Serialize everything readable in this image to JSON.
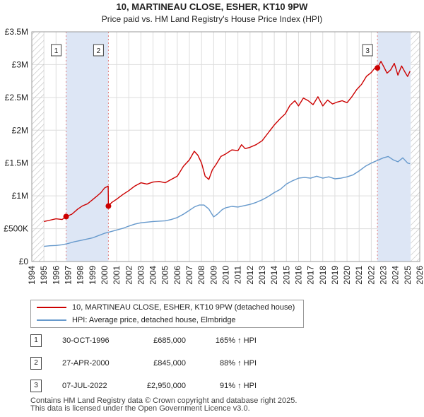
{
  "chart_data": {
    "type": "line",
    "title": "10, MARTINEAU CLOSE, ESHER, KT10 9PW",
    "subtitle": "Price paid vs. HM Land Registry's House Price Index (HPI)",
    "xlabel": "",
    "ylabel": "",
    "xlim": [
      1994,
      2026
    ],
    "ylim": [
      0,
      3500000
    ],
    "x_ticks": [
      "1994",
      "1995",
      "1996",
      "1997",
      "1998",
      "1999",
      "2000",
      "2001",
      "2002",
      "2003",
      "2004",
      "2005",
      "2006",
      "2007",
      "2008",
      "2009",
      "2010",
      "2011",
      "2012",
      "2013",
      "2014",
      "2015",
      "2016",
      "2017",
      "2018",
      "2019",
      "2020",
      "2021",
      "2022",
      "2023",
      "2024",
      "2025",
      "2026"
    ],
    "y_ticks": [
      {
        "value": 0,
        "label": "£0"
      },
      {
        "value": 500000,
        "label": "£500K"
      },
      {
        "value": 1000000,
        "label": "£1M"
      },
      {
        "value": 1500000,
        "label": "£1.5M"
      },
      {
        "value": 2000000,
        "label": "£2M"
      },
      {
        "value": 2500000,
        "label": "£2.5M"
      },
      {
        "value": 3000000,
        "label": "£3M"
      },
      {
        "value": 3500000,
        "label": "£3.5M"
      }
    ],
    "shaded_periods": [
      {
        "start": 1996.83,
        "end": 2000.32
      },
      {
        "start": 2022.51,
        "end": 2025.25
      }
    ],
    "hatched_periods": [
      {
        "start": 1994,
        "end": 1995.0
      },
      {
        "start": 2025.25,
        "end": 2026
      }
    ],
    "series": [
      {
        "name": "10, MARTINEAU CLOSE, ESHER, KT10 9PW (detached house)",
        "color": "#cc0000",
        "x": [
          1995.0,
          1995.5,
          1996.0,
          1996.5,
          1996.83,
          1997.3,
          1997.8,
          1998.2,
          1998.6,
          1999.0,
          1999.4,
          1999.7,
          2000.0,
          2000.3,
          2000.32,
          2000.6,
          2001.0,
          2001.5,
          2002.0,
          2002.5,
          2003.0,
          2003.5,
          2004.0,
          2004.5,
          2005.0,
          2005.5,
          2006.0,
          2006.5,
          2007.0,
          2007.4,
          2007.7,
          2008.0,
          2008.3,
          2008.6,
          2008.9,
          2009.2,
          2009.6,
          2010.0,
          2010.5,
          2011.0,
          2011.3,
          2011.6,
          2012.0,
          2012.5,
          2013.0,
          2013.5,
          2014.0,
          2014.5,
          2014.9,
          2015.3,
          2015.7,
          2016.0,
          2016.4,
          2016.8,
          2017.2,
          2017.6,
          2018.0,
          2018.4,
          2018.8,
          2019.2,
          2019.6,
          2020.0,
          2020.4,
          2020.8,
          2021.2,
          2021.6,
          2022.0,
          2022.3,
          2022.51,
          2022.8,
          2023.0,
          2023.3,
          2023.6,
          2023.9,
          2024.2,
          2024.5,
          2024.8,
          2025.0,
          2025.2
        ],
        "values": [
          610000,
          630000,
          650000,
          640000,
          685000,
          720000,
          800000,
          850000,
          880000,
          940000,
          1000000,
          1050000,
          1120000,
          1150000,
          845000,
          900000,
          950000,
          1020000,
          1080000,
          1150000,
          1200000,
          1180000,
          1210000,
          1220000,
          1200000,
          1250000,
          1300000,
          1450000,
          1550000,
          1680000,
          1620000,
          1500000,
          1300000,
          1250000,
          1400000,
          1480000,
          1600000,
          1640000,
          1700000,
          1690000,
          1780000,
          1720000,
          1740000,
          1780000,
          1840000,
          1960000,
          2080000,
          2180000,
          2250000,
          2380000,
          2450000,
          2370000,
          2490000,
          2450000,
          2390000,
          2510000,
          2370000,
          2460000,
          2400000,
          2430000,
          2450000,
          2420000,
          2510000,
          2620000,
          2700000,
          2820000,
          2880000,
          2950000,
          2950000,
          3050000,
          2980000,
          2870000,
          2920000,
          3020000,
          2840000,
          2980000,
          2880000,
          2820000,
          2900000
        ]
      },
      {
        "name": "HPI: Average price, detached house, Elmbridge",
        "color": "#6699cc",
        "x": [
          1995.0,
          1995.5,
          1996.0,
          1996.5,
          1997.0,
          1997.5,
          1998.0,
          1998.5,
          1999.0,
          1999.5,
          2000.0,
          2000.5,
          2001.0,
          2001.5,
          2002.0,
          2002.5,
          2003.0,
          2003.5,
          2004.0,
          2004.5,
          2005.0,
          2005.5,
          2006.0,
          2006.5,
          2007.0,
          2007.4,
          2007.8,
          2008.2,
          2008.6,
          2009.0,
          2009.3,
          2009.7,
          2010.0,
          2010.5,
          2011.0,
          2011.5,
          2012.0,
          2012.5,
          2013.0,
          2013.5,
          2014.0,
          2014.5,
          2015.0,
          2015.5,
          2016.0,
          2016.5,
          2017.0,
          2017.5,
          2018.0,
          2018.5,
          2019.0,
          2019.5,
          2020.0,
          2020.5,
          2021.0,
          2021.5,
          2022.0,
          2022.5,
          2023.0,
          2023.4,
          2023.8,
          2024.2,
          2024.6,
          2025.0,
          2025.2
        ],
        "values": [
          230000,
          240000,
          245000,
          255000,
          275000,
          300000,
          320000,
          340000,
          360000,
          395000,
          430000,
          455000,
          480000,
          505000,
          540000,
          570000,
          590000,
          600000,
          610000,
          615000,
          620000,
          640000,
          670000,
          720000,
          780000,
          830000,
          860000,
          860000,
          800000,
          680000,
          720000,
          790000,
          820000,
          840000,
          830000,
          850000,
          870000,
          900000,
          940000,
          990000,
          1050000,
          1100000,
          1180000,
          1230000,
          1270000,
          1280000,
          1270000,
          1300000,
          1270000,
          1290000,
          1260000,
          1270000,
          1290000,
          1320000,
          1380000,
          1450000,
          1500000,
          1540000,
          1580000,
          1600000,
          1550000,
          1520000,
          1580000,
          1500000,
          1490000
        ]
      }
    ],
    "transactions": [
      {
        "marker": "1",
        "date": "30-OCT-1996",
        "x": 1996.83,
        "price": 685000,
        "price_label": "£685,000",
        "hpi": "165% ↑ HPI"
      },
      {
        "marker": "2",
        "date": "27-APR-2000",
        "x": 2000.32,
        "price": 845000,
        "price_label": "£845,000",
        "hpi": "88% ↑ HPI"
      },
      {
        "marker": "3",
        "date": "07-JUL-2022",
        "x": 2022.51,
        "price": 2950000,
        "price_label": "£2,950,000",
        "hpi": "91% ↑ HPI"
      }
    ]
  },
  "legend": {
    "property": "10, MARTINEAU CLOSE, ESHER, KT10 9PW (detached house)",
    "hpi": "HPI: Average price, detached house, Elmbridge"
  },
  "footer": {
    "line1": "Contains HM Land Registry data © Crown copyright and database right 2025.",
    "line2": "This data is licensed under the Open Government Licence v3.0."
  },
  "colors": {
    "property": "#cc0000",
    "hpi": "#6699cc",
    "shade": "#dde6f5",
    "grid": "#dddddd",
    "vline": "#e08080"
  }
}
